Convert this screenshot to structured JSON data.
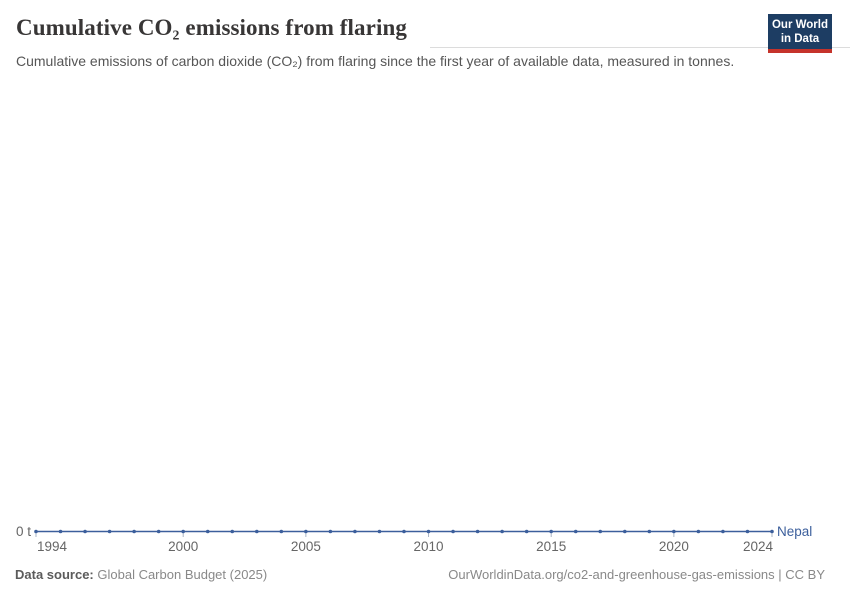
{
  "header": {
    "title": "Cumulative CO₂ emissions from flaring",
    "subtitle": "Cumulative emissions of carbon dioxide (CO₂) from flaring since the first year of available data, measured in tonnes."
  },
  "logo": {
    "line1": "Our World",
    "line2": "in Data",
    "bg_color": "#1d3d63",
    "accent_color": "#c5332b"
  },
  "chart_data": {
    "type": "line",
    "title": "Cumulative CO₂ emissions from flaring",
    "entity": "Nepal",
    "unit": "t",
    "x": [
      1994,
      1995,
      1996,
      1997,
      1998,
      1999,
      2000,
      2001,
      2002,
      2003,
      2004,
      2005,
      2006,
      2007,
      2008,
      2009,
      2010,
      2011,
      2012,
      2013,
      2014,
      2015,
      2016,
      2017,
      2018,
      2019,
      2020,
      2021,
      2022,
      2023,
      2024
    ],
    "series": [
      {
        "name": "Nepal",
        "color": "#3c5f9c",
        "values": [
          0,
          0,
          0,
          0,
          0,
          0,
          0,
          0,
          0,
          0,
          0,
          0,
          0,
          0,
          0,
          0,
          0,
          0,
          0,
          0,
          0,
          0,
          0,
          0,
          0,
          0,
          0,
          0,
          0,
          0,
          0
        ]
      }
    ],
    "x_ticks": [
      1994,
      2000,
      2005,
      2010,
      2015,
      2020,
      2024
    ],
    "y_ticks": [
      {
        "value": 0,
        "label": "0 t"
      }
    ],
    "xlim": [
      1994,
      2024
    ],
    "ylim": [
      0,
      0
    ],
    "grid": false,
    "legend_position": "end-of-line",
    "marker": "dot"
  },
  "footer": {
    "source_label": "Data source:",
    "source_value": "Global Carbon Budget (2025)",
    "link": "OurWorldinData.org/co2-and-greenhouse-gas-emissions | CC BY"
  },
  "colors": {
    "series_blue": "#3c5f9c",
    "axis_label_gray": "#666666",
    "tick_gray": "#a9b4c4",
    "title_gray": "#383636",
    "subtitle_gray": "#565656"
  }
}
